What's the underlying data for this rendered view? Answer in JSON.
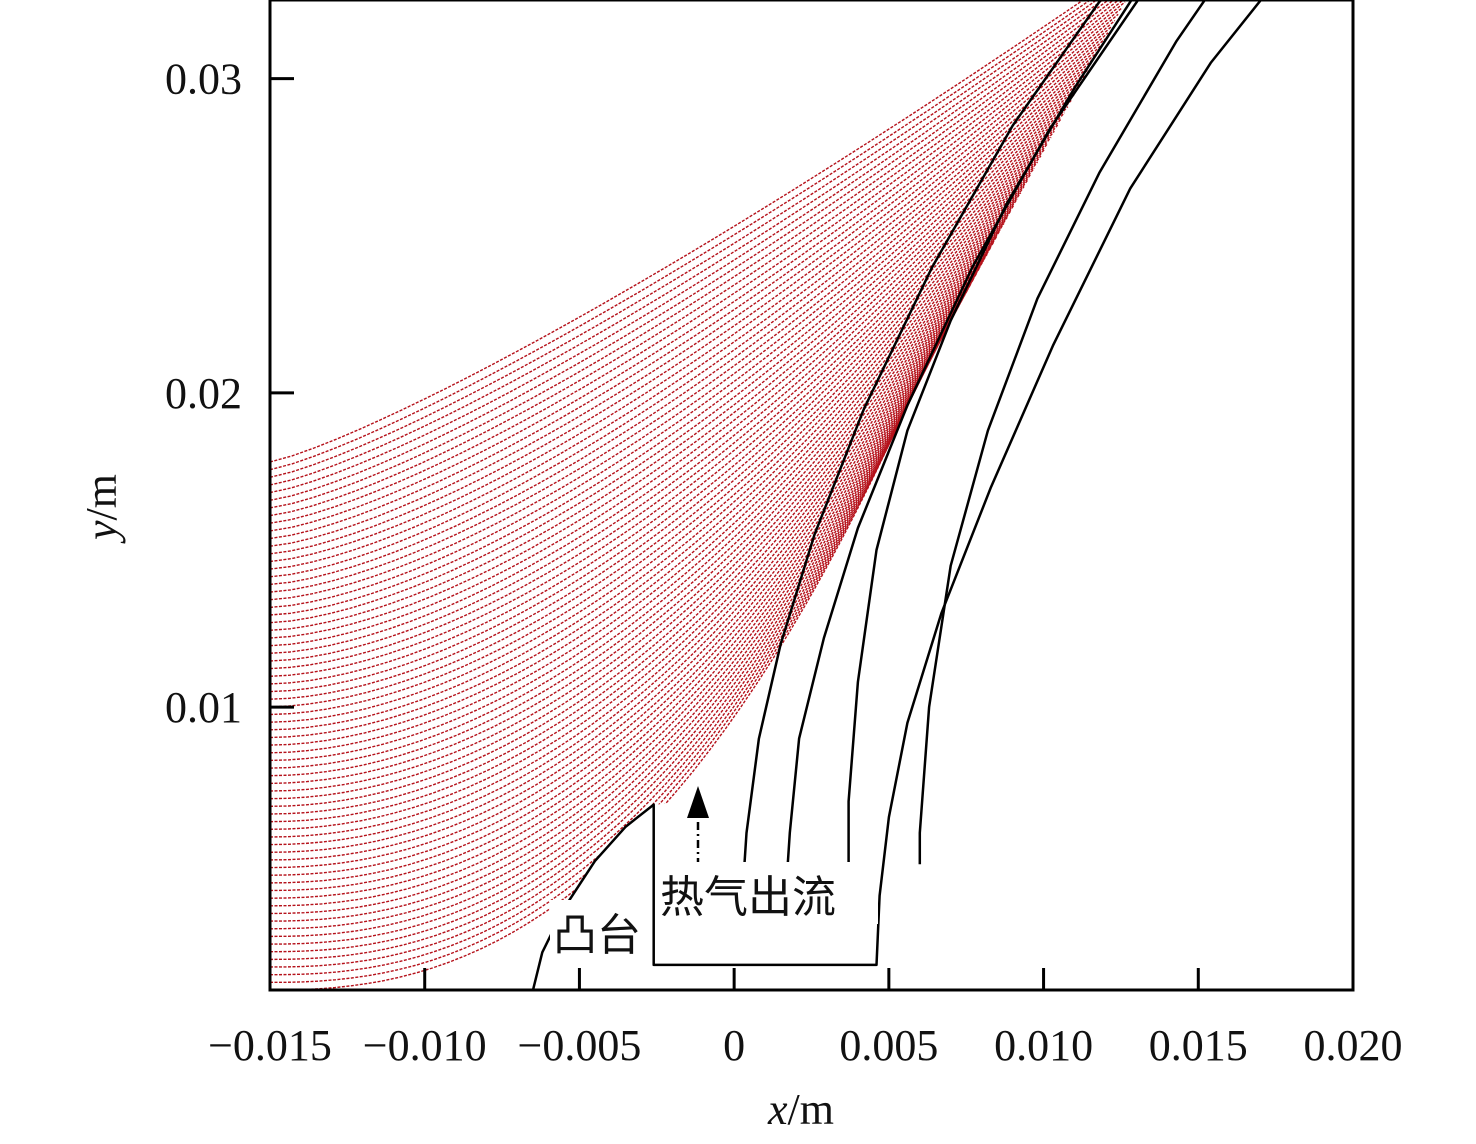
{
  "chart_data": {
    "type": "line",
    "xlabel_var": "x",
    "xlabel_unit": "/m",
    "ylabel_var": "y",
    "ylabel_unit": "/m",
    "xlim": [
      -0.015,
      0.02
    ],
    "ylim": [
      0.001,
      0.0325
    ],
    "xticks": [
      -0.015,
      -0.01,
      -0.005,
      0,
      0.005,
      0.01,
      0.015,
      0.02
    ],
    "xtick_labels": [
      "−0.015",
      "−0.010",
      "−0.005",
      "0",
      "0.005",
      "0.010",
      "0.015",
      "0.020"
    ],
    "yticks": [
      0.01,
      0.02,
      0.03
    ],
    "ytick_labels": [
      "0.01",
      "0.02",
      "0.03"
    ],
    "streamline_count": 70,
    "streamline_color": "#b5121b",
    "geometry_color": "#000000",
    "annotations": {
      "boss": "凸台",
      "hot_outflow": "热气出流"
    },
    "boss_outline": [
      [
        -0.0065,
        0.001
      ],
      [
        -0.0062,
        0.0022
      ],
      [
        -0.0055,
        0.0036
      ],
      [
        -0.0045,
        0.0051
      ],
      [
        -0.0035,
        0.0062
      ],
      [
        -0.0026,
        0.0069
      ],
      [
        -0.0026,
        0.0018
      ],
      [
        0.0046,
        0.0018
      ],
      [
        0.0047,
        0.004
      ],
      [
        0.005,
        0.0065
      ],
      [
        0.0056,
        0.0095
      ],
      [
        0.0067,
        0.013
      ],
      [
        0.0083,
        0.017
      ],
      [
        0.0103,
        0.0215
      ],
      [
        0.0128,
        0.0265
      ],
      [
        0.0154,
        0.0305
      ],
      [
        0.0184,
        0.0342
      ],
      [
        0.0205,
        0.0365
      ]
    ],
    "inner_blade": [
      [
        0.0003,
        0.0045
      ],
      [
        0.0004,
        0.006
      ],
      [
        0.0008,
        0.009
      ],
      [
        0.0015,
        0.012
      ],
      [
        0.0026,
        0.0155
      ],
      [
        0.0042,
        0.0195
      ],
      [
        0.0064,
        0.024
      ],
      [
        0.009,
        0.0285
      ],
      [
        0.0122,
        0.033
      ],
      [
        0.0128,
        0.0337
      ],
      [
        0.014,
        0.0337
      ],
      [
        0.0134,
        0.033
      ],
      [
        0.0102,
        0.0284
      ],
      [
        0.0077,
        0.024
      ],
      [
        0.0056,
        0.0196
      ],
      [
        0.004,
        0.0157
      ],
      [
        0.0029,
        0.0122
      ],
      [
        0.0021,
        0.009
      ],
      [
        0.0018,
        0.006
      ],
      [
        0.0017,
        0.0045
      ],
      [
        0.0003,
        0.0045
      ]
    ],
    "outer_wall": [
      [
        0.012,
        0.0352
      ],
      [
        0.0133,
        0.0332
      ],
      [
        0.011,
        0.0297
      ],
      [
        0.0088,
        0.026
      ],
      [
        0.007,
        0.0223
      ],
      [
        0.0056,
        0.0188
      ],
      [
        0.0046,
        0.015
      ],
      [
        0.004,
        0.0108
      ],
      [
        0.0037,
        0.007
      ],
      [
        0.0037,
        0.0045
      ]
    ],
    "right_wall": [
      [
        0.0164,
        0.0342
      ],
      [
        0.0143,
        0.0312
      ],
      [
        0.0118,
        0.027
      ],
      [
        0.0098,
        0.023
      ],
      [
        0.0082,
        0.0188
      ],
      [
        0.007,
        0.0145
      ],
      [
        0.0063,
        0.01
      ],
      [
        0.006,
        0.006
      ],
      [
        0.006,
        0.005
      ]
    ]
  }
}
